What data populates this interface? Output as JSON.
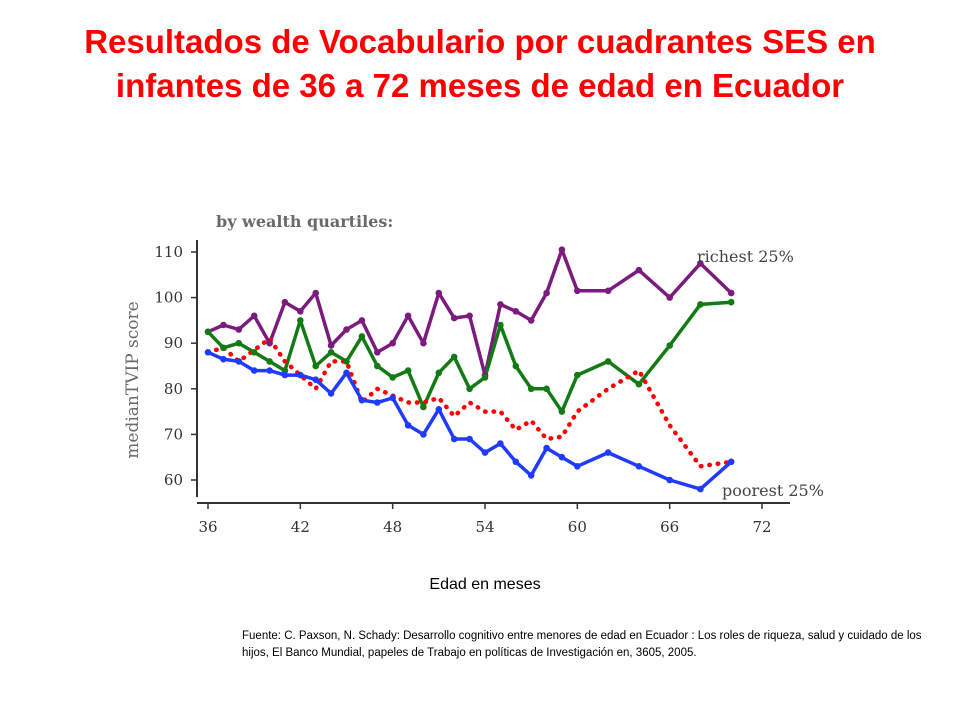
{
  "slide": {
    "title": "Resultados de Vocabulario por cuadrantes SES en infantes de 36 a 72 meses de edad en Ecuador",
    "x_caption": "Edad en meses",
    "source": "Fuente: C. Paxson, N. Schady: Desarrollo cognitivo entre menores de edad en Ecuador : Los roles de riqueza, salud y cuidado de los hijos, El Banco Mundial, papeles de Trabajo en políticas de Investigación en, 3605, 2005."
  },
  "chart_data": {
    "type": "line",
    "subtitle": "by wealth quartiles:",
    "ylabel": "medianTVIP score",
    "xlabel": "",
    "xlim": [
      36,
      72
    ],
    "ylim": [
      55,
      112
    ],
    "xticks": [
      36,
      42,
      48,
      54,
      60,
      66,
      72
    ],
    "yticks": [
      60,
      70,
      80,
      90,
      100,
      110
    ],
    "grid": false,
    "annotations": [
      "richest 25%",
      "poorest 25%"
    ],
    "series": [
      {
        "name": "richest 25%",
        "color": "#7b1b7e",
        "style": "solid",
        "x": [
          36,
          37,
          38,
          39,
          40,
          41,
          42,
          43,
          44,
          45,
          46,
          47,
          48,
          49,
          50,
          51,
          52,
          53,
          54,
          55,
          56,
          57,
          58,
          59,
          60,
          62,
          64,
          66,
          68,
          70
        ],
        "y": [
          92.5,
          94,
          93,
          96,
          90,
          99,
          97,
          101,
          89.5,
          93,
          95,
          88,
          90,
          96,
          90,
          101,
          95.5,
          96,
          83,
          98.5,
          97,
          95,
          101,
          110.5,
          101.5,
          101.5,
          106,
          100,
          107.5,
          101
        ]
      },
      {
        "name": "",
        "color": "#137b13",
        "style": "solid",
        "x": [
          36,
          37,
          38,
          39,
          40,
          41,
          42,
          43,
          44,
          45,
          46,
          47,
          48,
          49,
          50,
          51,
          52,
          53,
          54,
          55,
          56,
          57,
          58,
          59,
          60,
          62,
          64,
          66,
          68,
          70
        ],
        "y": [
          92.5,
          89,
          90,
          88,
          86,
          84,
          95,
          85,
          88,
          86,
          91.5,
          85,
          82.5,
          84,
          76,
          83.5,
          87,
          80,
          82.5,
          94,
          85,
          80,
          80,
          75,
          83,
          86,
          81,
          89.5,
          98.5,
          99
        ]
      },
      {
        "name": "",
        "color": "#ff0000",
        "style": "dotted",
        "x": [
          36,
          37,
          38,
          39,
          40,
          41,
          42,
          43,
          44,
          45,
          46,
          47,
          48,
          49,
          50,
          51,
          52,
          53,
          54,
          55,
          56,
          57,
          58,
          59,
          60,
          62,
          64,
          66,
          68,
          70
        ],
        "y": [
          88,
          89,
          86,
          88.5,
          91,
          86,
          83,
          80,
          86,
          86,
          77,
          80,
          78.5,
          77,
          77,
          78,
          74,
          77,
          75,
          75,
          71,
          73,
          69,
          69.5,
          75,
          80,
          84,
          72,
          63,
          64
        ]
      },
      {
        "name": "poorest 25%",
        "color": "#1f3bff",
        "style": "solid",
        "x": [
          36,
          37,
          38,
          39,
          40,
          41,
          42,
          43,
          44,
          45,
          46,
          47,
          48,
          49,
          50,
          51,
          52,
          53,
          54,
          55,
          56,
          57,
          58,
          59,
          60,
          62,
          64,
          66,
          68,
          70
        ],
        "y": [
          88,
          86.5,
          86,
          84,
          84,
          83,
          83,
          82,
          79,
          83.5,
          77.5,
          77,
          78,
          72,
          70,
          75.5,
          69,
          69,
          66,
          68,
          64,
          61,
          67,
          65,
          63,
          66,
          63,
          60,
          58,
          64
        ]
      }
    ]
  }
}
